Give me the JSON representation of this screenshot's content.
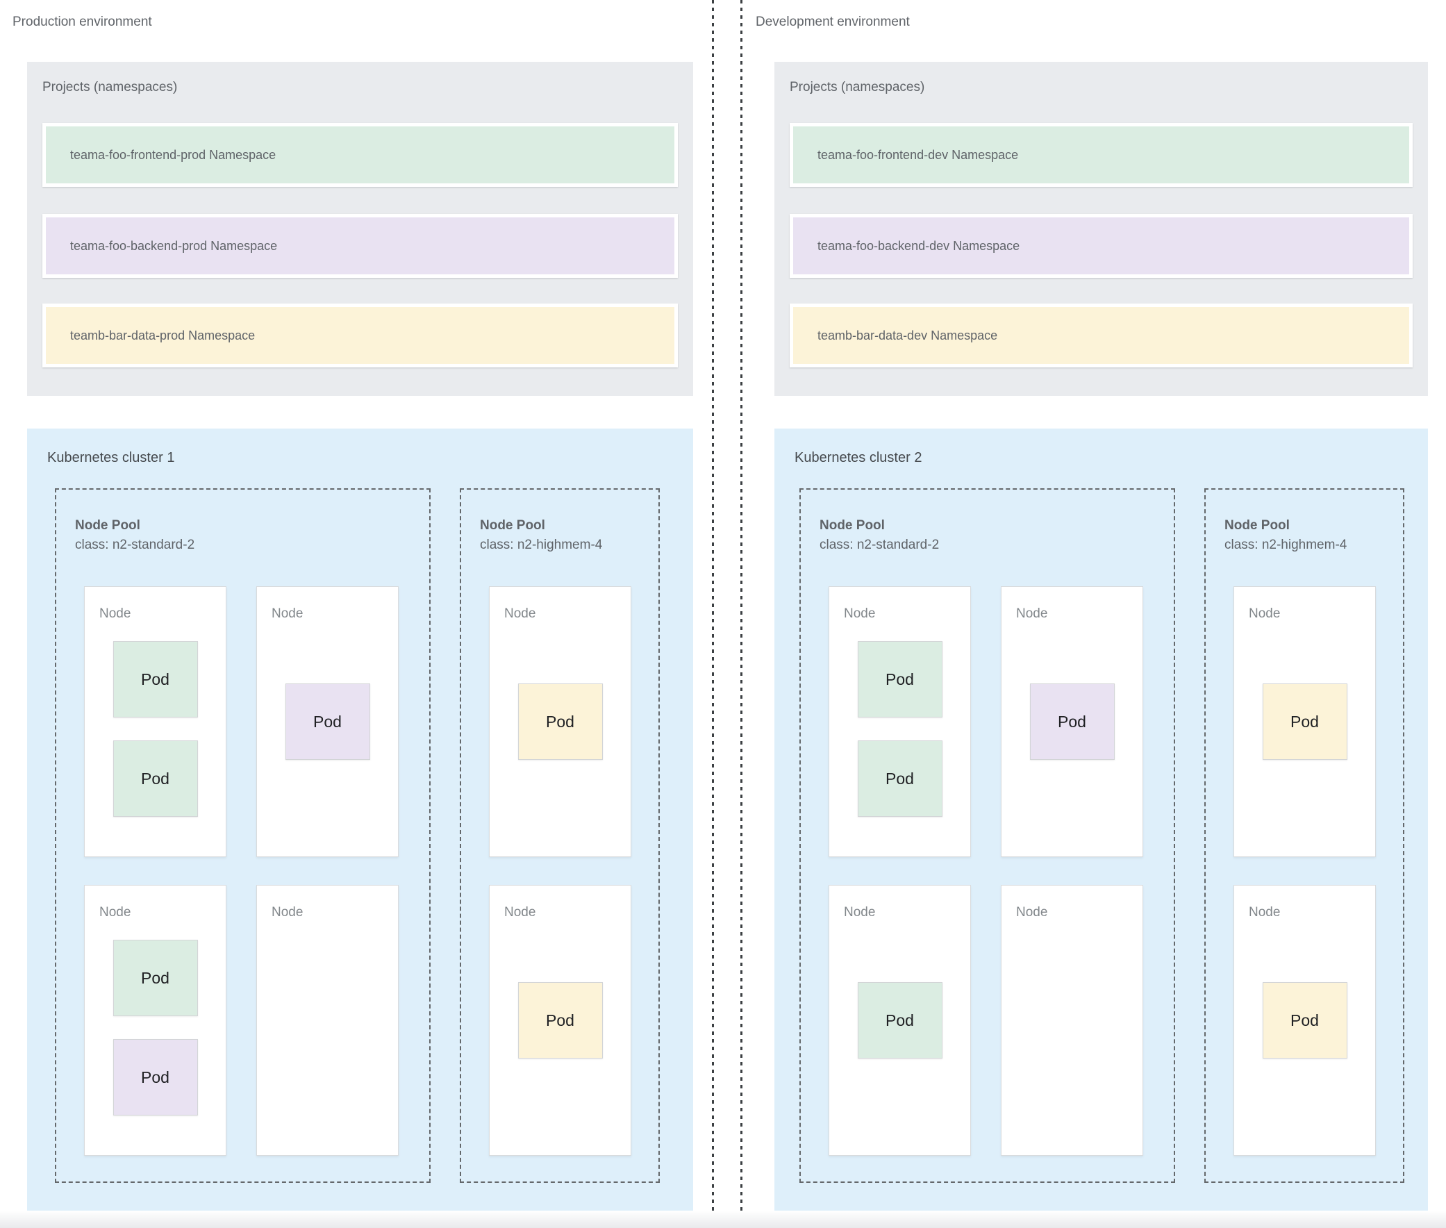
{
  "colors": {
    "green": "#dbede2",
    "purple": "#e9e2f2",
    "yellow": "#fcf3d8",
    "cluster_bg": "#deeffa",
    "projects_bg": "#e9ebee",
    "text_gray": "#5f6368"
  },
  "labels": {
    "node": "Node",
    "pod": "Pod"
  },
  "environments": [
    {
      "title": "Production environment",
      "projects": {
        "title": "Projects (namespaces)",
        "namespaces": [
          {
            "label": "teama-foo-frontend-prod Namespace",
            "color": "green"
          },
          {
            "label": "teama-foo-backend-prod Namespace",
            "color": "purple"
          },
          {
            "label": "teamb-bar-data-prod Namespace",
            "color": "yellow"
          }
        ]
      },
      "cluster": {
        "title": "Kubernetes cluster 1",
        "pools": [
          {
            "name": "Node Pool",
            "class_line": "class: n2-standard-2",
            "columns": 2,
            "nodes": [
              {
                "pods": [
                  "green",
                  "green"
                ]
              },
              {
                "pods": [
                  "purple"
                ]
              },
              {
                "pods": [
                  "green",
                  "purple"
                ]
              },
              {
                "pods": []
              }
            ]
          },
          {
            "name": "Node Pool",
            "class_line": "class: n2-highmem-4",
            "columns": 1,
            "nodes": [
              {
                "pods": [
                  "yellow"
                ]
              },
              {
                "pods": [
                  "yellow"
                ]
              }
            ]
          }
        ]
      }
    },
    {
      "title": "Development environment",
      "projects": {
        "title": "Projects (namespaces)",
        "namespaces": [
          {
            "label": "teama-foo-frontend-dev Namespace",
            "color": "green"
          },
          {
            "label": "teama-foo-backend-dev Namespace",
            "color": "purple"
          },
          {
            "label": "teamb-bar-data-dev Namespace",
            "color": "yellow"
          }
        ]
      },
      "cluster": {
        "title": "Kubernetes cluster 2",
        "pools": [
          {
            "name": "Node Pool",
            "class_line": "class: n2-standard-2",
            "columns": 2,
            "nodes": [
              {
                "pods": [
                  "green",
                  "green"
                ]
              },
              {
                "pods": [
                  "purple"
                ]
              },
              {
                "pods": [
                  "green"
                ]
              },
              {
                "pods": []
              }
            ]
          },
          {
            "name": "Node Pool",
            "class_line": "class: n2-highmem-4",
            "columns": 1,
            "nodes": [
              {
                "pods": [
                  "yellow"
                ]
              },
              {
                "pods": [
                  "yellow"
                ]
              }
            ]
          }
        ]
      }
    }
  ]
}
